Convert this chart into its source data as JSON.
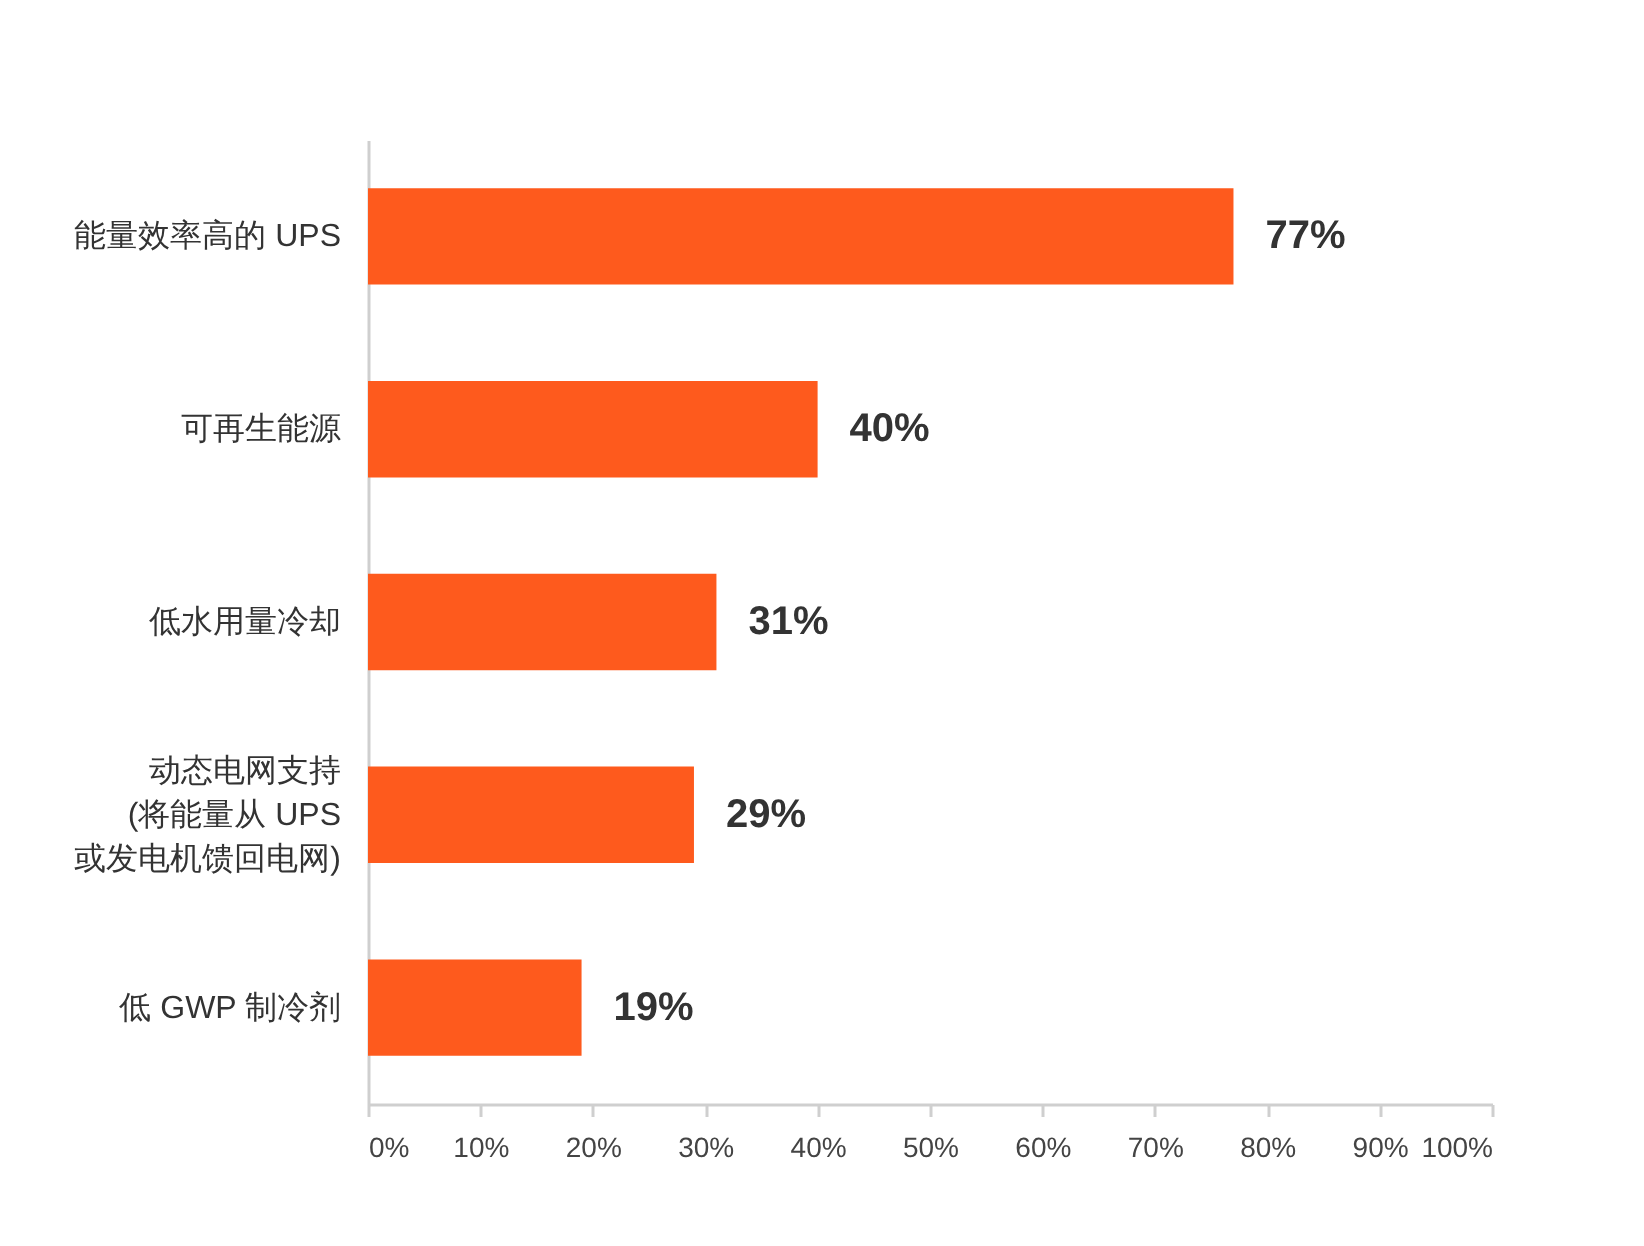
{
  "chart_data": {
    "type": "bar",
    "orientation": "horizontal",
    "categories": [
      "能量效率高的 UPS",
      "可再生能源",
      "低水用量冷却",
      "动态电网支持\n(将能量从 UPS\n或发电机馈回电网)",
      "低 GWP 制冷剂"
    ],
    "values": [
      77,
      40,
      31,
      29,
      19
    ],
    "color": "#fe5a1d",
    "value_labels": [
      "77%",
      "40%",
      "31%",
      "29%",
      "19%"
    ],
    "xlim": [
      0,
      100
    ],
    "xticks": [
      {
        "value": 0,
        "label": "0%"
      },
      {
        "value": 10,
        "label": "10%"
      },
      {
        "value": 20,
        "label": "20%"
      },
      {
        "value": 30,
        "label": "30%"
      },
      {
        "value": 40,
        "label": "40%"
      },
      {
        "value": 50,
        "label": "50%"
      },
      {
        "value": 60,
        "label": "60%"
      },
      {
        "value": 70,
        "label": "70%"
      },
      {
        "value": 80,
        "label": "80%"
      },
      {
        "value": 90,
        "label": "90%"
      },
      {
        "value": 100,
        "label": "100%"
      }
    ]
  }
}
